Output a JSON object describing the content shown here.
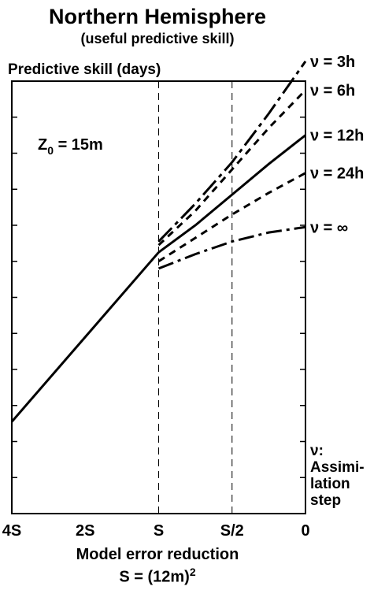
{
  "chart_data": {
    "type": "line",
    "title": "Northern Hemisphere",
    "subtitle": "(useful predictive skill)",
    "ylabel": "Predictive skill (days)",
    "xlabel": "Model error reduction",
    "xlabel2_base": "S = (12m)",
    "xlabel2_sup": "2",
    "annotation": {
      "base": "Z",
      "sub": "0",
      "rest": " = 15m"
    },
    "x_ticks": [
      "4S",
      "2S",
      "S",
      "S/2",
      "0"
    ],
    "x_tick_pos": [
      0,
      1,
      2,
      3,
      4
    ],
    "x_range": [
      0,
      4
    ],
    "y_range": [
      0,
      12
    ],
    "y_minor_ticks": 11,
    "vlines_at": [
      2,
      3
    ],
    "base_line": {
      "name": "",
      "x": [
        0,
        2
      ],
      "y": [
        2.55,
        7.25
      ]
    },
    "series": [
      {
        "name": "ν = 3h",
        "style": "dashdot-long",
        "x": [
          2,
          2.5,
          3,
          3.5,
          4
        ],
        "y": [
          7.55,
          8.6,
          9.75,
          11.1,
          12.55
        ]
      },
      {
        "name": "ν = 6h",
        "style": "dotted",
        "x": [
          2,
          2.5,
          3,
          3.5,
          4
        ],
        "y": [
          7.45,
          8.4,
          9.55,
          10.7,
          11.75
        ]
      },
      {
        "name": "ν = 12h",
        "style": "solid",
        "x": [
          2,
          2.5,
          3,
          3.5,
          4
        ],
        "y": [
          7.25,
          8.0,
          8.85,
          9.7,
          10.5
        ]
      },
      {
        "name": "ν = 24h",
        "style": "dotted",
        "x": [
          2,
          2.5,
          3,
          3.5,
          4
        ],
        "y": [
          7.0,
          7.65,
          8.3,
          8.9,
          9.45
        ]
      },
      {
        "name": "ν = ∞",
        "style": "dashdot",
        "x": [
          2,
          2.5,
          3,
          3.5,
          4
        ],
        "y": [
          6.8,
          7.2,
          7.55,
          7.8,
          7.95
        ]
      }
    ],
    "legend_note": [
      "ν:",
      "Assimi-",
      "lation",
      "step"
    ]
  }
}
